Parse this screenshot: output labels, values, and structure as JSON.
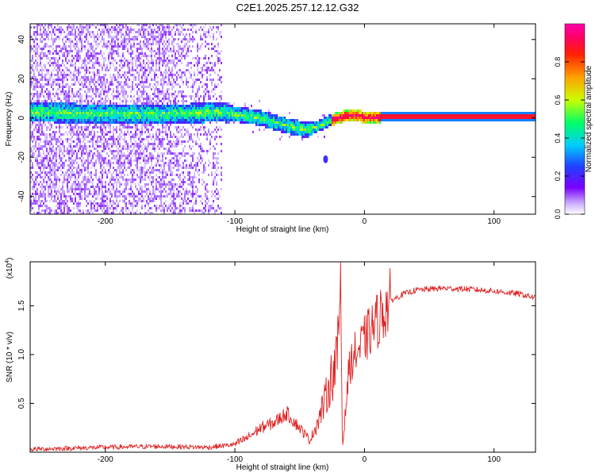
{
  "figure_title": "C2E1.2025.257.12.12.G32",
  "chart_data": [
    {
      "type": "heatmap",
      "title": "C2E1.2025.257.12.12.G32",
      "xlabel": "Height of straight line (km)",
      "ylabel": "Frequency (Hz)",
      "xlim": [
        -258,
        132
      ],
      "ylim": [
        -49,
        48
      ],
      "xticks": [
        -200,
        -100,
        0,
        100
      ],
      "yticks": [
        -40,
        -20,
        0,
        20,
        40
      ],
      "xtick_labels": [
        "-200",
        "-100",
        "0",
        "100"
      ],
      "ytick_labels": [
        "-40",
        "-20",
        "0",
        "20",
        "40"
      ],
      "colorbar": {
        "label": "Normalized spectral amplitude",
        "range": [
          0,
          1
        ],
        "ticks": [
          0.0,
          0.2,
          0.4,
          0.6,
          0.8
        ],
        "tick_labels": [
          "0.0",
          "0.2",
          "0.4",
          "0.6",
          "0.8"
        ],
        "colors": [
          "#ffffff",
          "#7a00ff",
          "#2040ff",
          "#00ccff",
          "#00ff66",
          "#ccff00",
          "#ffa000",
          "#ff2000",
          "#ff0066",
          "#ff00aa"
        ]
      },
      "band_center_hz": {
        "x": [
          -258,
          -200,
          -150,
          -110,
          -100,
          -80,
          -60,
          -45,
          -35,
          -25,
          -15,
          -5,
          0,
          10,
          132
        ],
        "y": [
          3,
          2,
          2,
          3,
          2,
          0,
          -4,
          -6,
          -4,
          -1,
          1,
          1,
          0.5,
          0.5,
          0.5
        ]
      },
      "isolated_spot": {
        "x": -30,
        "y": -21
      }
    },
    {
      "type": "line",
      "xlabel": "Height of straight line (km)",
      "ylabel": "SNR (10 * v/v)",
      "scale_label": "(x10",
      "scale_exponent": "4",
      "xlim": [
        -258,
        132
      ],
      "ylim": [
        0,
        1.95
      ],
      "xticks": [
        -200,
        -100,
        0,
        100
      ],
      "yticks": [
        0.5,
        1.0,
        1.5
      ],
      "xtick_labels": [
        "-200",
        "-100",
        "0",
        "100"
      ],
      "ytick_labels": [
        "0.5",
        "1.0",
        "1.5"
      ],
      "series_color": "#e02020",
      "envelope": {
        "x": [
          -258,
          -200,
          -160,
          -120,
          -100,
          -90,
          -80,
          -70,
          -60,
          -50,
          -42,
          -35,
          -30,
          -26,
          -22,
          -20,
          -18.5,
          -17,
          -12,
          -8,
          -4,
          0,
          5,
          10,
          15,
          20,
          30,
          40,
          60,
          80,
          100,
          120,
          132
        ],
        "y": [
          0.03,
          0.05,
          0.06,
          0.05,
          0.08,
          0.15,
          0.25,
          0.3,
          0.4,
          0.25,
          0.12,
          0.35,
          0.55,
          0.75,
          0.9,
          1.1,
          1.95,
          0.03,
          0.85,
          1.0,
          1.05,
          1.15,
          1.25,
          1.35,
          1.45,
          1.55,
          1.62,
          1.66,
          1.68,
          1.67,
          1.65,
          1.62,
          1.58
        ]
      }
    }
  ]
}
